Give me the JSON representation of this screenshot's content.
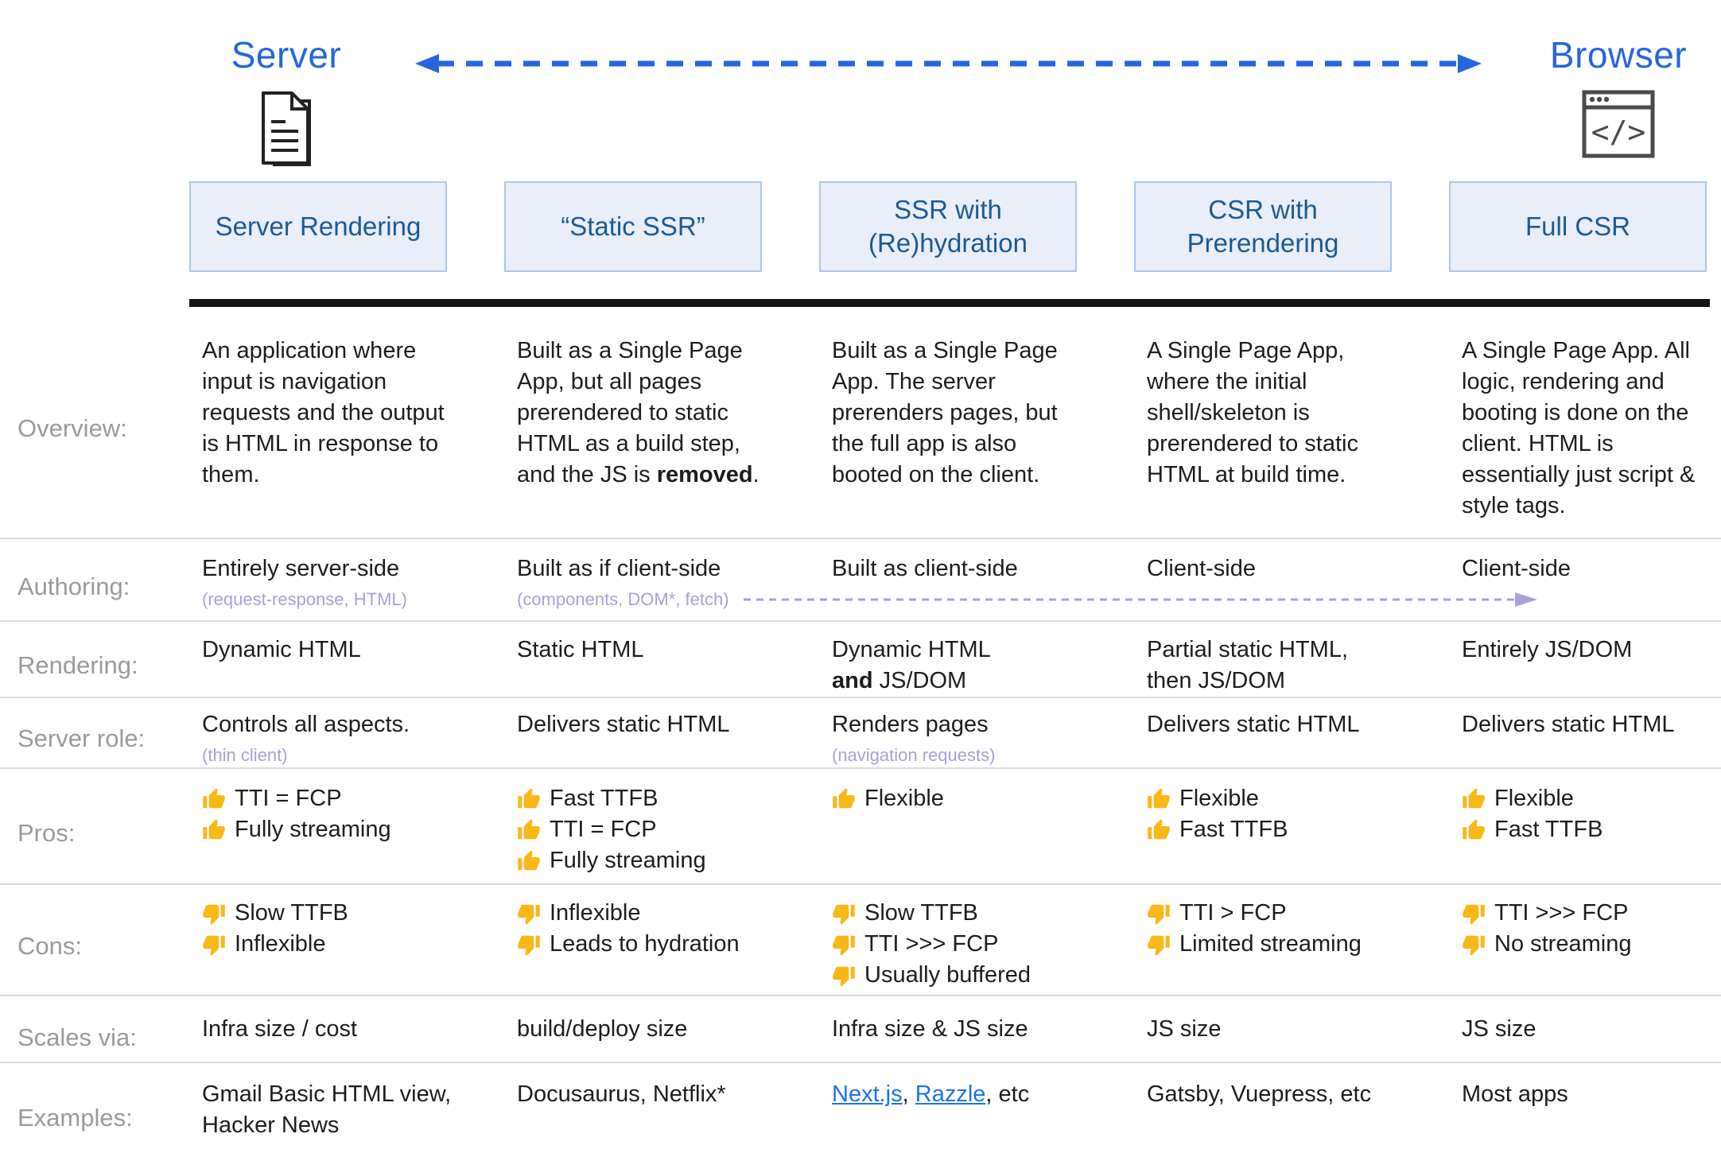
{
  "colors": {
    "accent_blue": "#2565DF",
    "box_fill": "#E9EEF8",
    "box_border": "#AEC6E8",
    "box_text": "#1A5A96",
    "label_gray": "#9A9A9A",
    "subtext_purple": "#A6A1D8",
    "link_blue": "#1A73E8",
    "thumb_gold": "#F9B816",
    "body_text": "#1D1D1D",
    "divider_gray": "#DBDBDB",
    "icon_gray": "#4A4A4A",
    "bar_black": "#141414"
  },
  "header": {
    "server_label": "Server",
    "browser_label": "Browser",
    "server_icon": "document-pages-icon",
    "browser_icon": "browser-code-icon",
    "spectrum_arrow": "double-headed-dashed-arrow",
    "boxes": [
      {
        "label": "Server Rendering"
      },
      {
        "label": "“Static SSR”"
      },
      {
        "label": "SSR with (Re)hydration"
      },
      {
        "label": "CSR with Prerendering"
      },
      {
        "label": "Full CSR"
      }
    ]
  },
  "table": {
    "rows": [
      {
        "id": "overview",
        "label": "Overview:",
        "type": "text",
        "cells": [
          {
            "seg": [
              {
                "t": "An application where input is navigation requests and the output is HTML in response to them."
              }
            ]
          },
          {
            "seg": [
              {
                "t": "Built as a Single Page App, but all pages prerendered to static HTML as a build step, and the JS is "
              },
              {
                "t": "removed",
                "b": true
              },
              {
                "t": "."
              }
            ]
          },
          {
            "seg": [
              {
                "t": "Built as a Single Page App. The server prerenders pages, but the full app is also booted on the client."
              }
            ]
          },
          {
            "seg": [
              {
                "t": "A Single Page App, where the initial shell/skeleton is prerendered to static HTML at build time."
              }
            ]
          },
          {
            "seg": [
              {
                "t": "A Single Page App. All logic, rendering and booting is done on the client. HTML is essentially just script & style tags."
              }
            ]
          }
        ]
      },
      {
        "id": "authoring",
        "label": "Authoring:",
        "type": "text",
        "continuation_arrow": true,
        "cells": [
          {
            "seg": [
              {
                "t": "Entirely server-side"
              }
            ],
            "sub": "(request-response, HTML)"
          },
          {
            "seg": [
              {
                "t": "Built as if client-side"
              }
            ],
            "sub": "(components, DOM*, fetch)"
          },
          {
            "seg": [
              {
                "t": "Built as client-side"
              }
            ]
          },
          {
            "seg": [
              {
                "t": "Client-side"
              }
            ]
          },
          {
            "seg": [
              {
                "t": "Client-side"
              }
            ]
          }
        ]
      },
      {
        "id": "rendering",
        "label": "Rendering:",
        "type": "text",
        "cells": [
          {
            "seg": [
              {
                "t": "Dynamic HTML"
              }
            ]
          },
          {
            "seg": [
              {
                "t": "Static HTML"
              }
            ]
          },
          {
            "seg": [
              {
                "t": "Dynamic HTML"
              },
              {
                "br": true
              },
              {
                "t": "and",
                "b": true
              },
              {
                "t": " JS/DOM"
              }
            ]
          },
          {
            "seg": [
              {
                "t": "Partial static HTML,"
              },
              {
                "br": true
              },
              {
                "t": "then JS/DOM"
              }
            ]
          },
          {
            "seg": [
              {
                "t": "Entirely JS/DOM"
              }
            ]
          }
        ]
      },
      {
        "id": "server-role",
        "label": "Server role:",
        "type": "text",
        "cells": [
          {
            "seg": [
              {
                "t": "Controls all aspects."
              }
            ],
            "sub": "(thin client)"
          },
          {
            "seg": [
              {
                "t": "Delivers static HTML"
              }
            ]
          },
          {
            "seg": [
              {
                "t": "Renders pages"
              }
            ],
            "sub": "(navigation requests)"
          },
          {
            "seg": [
              {
                "t": "Delivers static HTML"
              }
            ]
          },
          {
            "seg": [
              {
                "t": "Delivers static HTML"
              }
            ]
          }
        ]
      },
      {
        "id": "pros",
        "label": "Pros:",
        "type": "list",
        "icon": "thumb-up",
        "cells": [
          {
            "items": [
              "TTI = FCP",
              "Fully streaming"
            ]
          },
          {
            "items": [
              "Fast TTFB",
              "TTI = FCP",
              "Fully streaming"
            ]
          },
          {
            "items": [
              "Flexible"
            ]
          },
          {
            "items": [
              "Flexible",
              "Fast TTFB"
            ]
          },
          {
            "items": [
              "Flexible",
              "Fast TTFB"
            ]
          }
        ]
      },
      {
        "id": "cons",
        "label": "Cons:",
        "type": "list",
        "icon": "thumb-down",
        "cells": [
          {
            "items": [
              "Slow TTFB",
              "Inflexible"
            ]
          },
          {
            "items": [
              "Inflexible",
              "Leads to hydration"
            ]
          },
          {
            "items": [
              "Slow TTFB",
              "TTI >>> FCP",
              "Usually buffered"
            ]
          },
          {
            "items": [
              "TTI > FCP",
              "Limited streaming"
            ]
          },
          {
            "items": [
              "TTI >>> FCP",
              "No streaming"
            ]
          }
        ]
      },
      {
        "id": "scales-via",
        "label": "Scales via:",
        "type": "text",
        "cells": [
          {
            "seg": [
              {
                "t": "Infra size / cost"
              }
            ]
          },
          {
            "seg": [
              {
                "t": "build/deploy size"
              }
            ]
          },
          {
            "seg": [
              {
                "t": "Infra size & JS size"
              }
            ]
          },
          {
            "seg": [
              {
                "t": "JS size"
              }
            ]
          },
          {
            "seg": [
              {
                "t": "JS size"
              }
            ]
          }
        ]
      },
      {
        "id": "examples",
        "label": "Examples:",
        "type": "text",
        "cells": [
          {
            "seg": [
              {
                "t": "Gmail Basic HTML view, Hacker News"
              }
            ]
          },
          {
            "seg": [
              {
                "t": "Docusaurus, Netflix*"
              }
            ]
          },
          {
            "seg": [
              {
                "t": "Next.js",
                "link": true
              },
              {
                "t": ", "
              },
              {
                "t": "Razzle",
                "link": true
              },
              {
                "t": ", etc"
              }
            ]
          },
          {
            "seg": [
              {
                "t": "Gatsby, Vuepress, etc"
              }
            ]
          },
          {
            "seg": [
              {
                "t": "Most apps"
              }
            ]
          }
        ]
      }
    ]
  }
}
